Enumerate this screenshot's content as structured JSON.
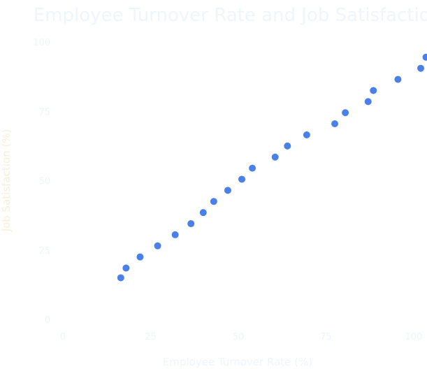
{
  "chart_data": {
    "type": "scatter",
    "title": "Employee Turnover Rate and Job Satisfaction",
    "xlabel": "Employee Turnover Rate (%)",
    "ylabel": "Job Satisfaction (%)",
    "xlim": [
      0,
      100
    ],
    "ylim": [
      0,
      100
    ],
    "xticks": [
      "0",
      "25",
      "50",
      "75",
      "100"
    ],
    "yticks": [
      "0",
      "25",
      "50",
      "75",
      "100"
    ],
    "grid": false,
    "color": "#4a80e8",
    "series": [
      {
        "x": [
          16.5,
          18.0,
          22.0,
          27.0,
          32.0,
          36.5,
          40.0,
          43.0,
          47.0,
          51.0,
          54.0,
          60.5,
          64.0,
          69.5,
          77.5,
          80.5,
          87.0,
          88.5,
          95.5,
          102.0,
          103.5
        ],
        "y": [
          15.0,
          18.5,
          22.5,
          26.5,
          30.5,
          34.5,
          38.5,
          42.5,
          46.5,
          50.5,
          54.5,
          58.5,
          62.5,
          66.5,
          70.5,
          74.5,
          78.5,
          82.5,
          86.5,
          90.5,
          94.5
        ]
      }
    ]
  }
}
